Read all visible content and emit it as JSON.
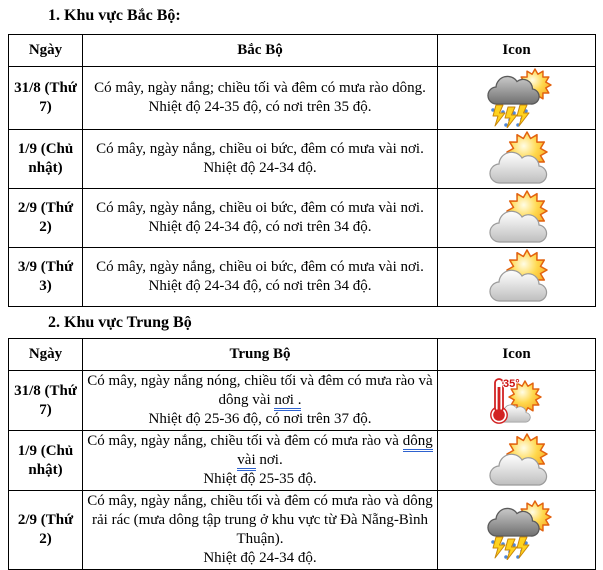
{
  "headings": {
    "section1": "1. Khu vực Bắc Bộ:",
    "section2": "2. Khu vực Trung Bộ"
  },
  "tables": [
    {
      "id": "bac-bo",
      "columns": [
        "Ngày",
        "Bắc Bộ",
        "Icon"
      ],
      "rows": [
        {
          "date": "31/8 (Thứ 7)",
          "desc": "Có mây, ngày nắng; chiều tối và đêm có mưa rào dông.",
          "temp": "Nhiệt độ 24-35 độ, có nơi trên 35 độ.",
          "icon": "storm-sun-icon"
        },
        {
          "date": "1/9 (Chủ nhật)",
          "desc": "Có mây, ngày nắng, chiều oi bức, đêm có mưa vài nơi.",
          "temp": "Nhiệt độ 24-34 độ.",
          "icon": "sun-cloud-icon"
        },
        {
          "date": "2/9 (Thứ 2)",
          "desc": "Có mây, ngày nắng, chiều oi bức, đêm có mưa vài nơi.",
          "temp": "Nhiệt độ 24-34 độ, có nơi trên 34 độ.",
          "icon": "sun-cloud-icon"
        },
        {
          "date": "3/9 (Thứ 3)",
          "desc": "Có mây, ngày nắng, chiều oi bức, đêm có mưa vài nơi.",
          "temp": "Nhiệt độ 24-34 độ, có nơi trên 34 độ.",
          "icon": "sun-cloud-icon"
        }
      ]
    },
    {
      "id": "trung-bo",
      "columns": [
        "Ngày",
        "Trung Bộ",
        "Icon"
      ],
      "rows": [
        {
          "date": "31/8 (Thứ 7)",
          "desc": "Có mây, ngày nắng nóng, chiều tối và đêm có mưa rào và dông vài nơi .",
          "underline": "nơi .",
          "temp": "Nhiệt độ 25-36 độ, có nơi trên 37 độ.",
          "icon": "hot-thermometer-icon",
          "icon_label": "35°"
        },
        {
          "date": "1/9 (Chủ nhật)",
          "desc": "Có mây, ngày nắng, chiều tối và đêm có mưa rào và dông vài nơi.",
          "underline": "dông vài",
          "temp": "Nhiệt độ 25-35 độ.",
          "icon": "sun-cloud-icon"
        },
        {
          "date": "2/9 (Thứ 2)",
          "desc": "Có mây, ngày nắng, chiều tối và đêm có mưa rào và dông rải rác (mưa dông tập trung ở khu vực từ Đà Nẵng-Bình Thuận).",
          "temp": "Nhiệt độ 24-34 độ.",
          "icon": "storm-sun-icon"
        }
      ]
    }
  ],
  "icons": {
    "storm-sun-icon": "dark cloud with sun, lightning and rain",
    "sun-cloud-icon": "sun behind light cloud",
    "hot-thermometer-icon": "thermometer 35° with sun and small cloud"
  },
  "colors": {
    "text": "#000000",
    "table_border": "#000000",
    "grammar_underline_blue": "#2e62cf",
    "sun_yellow": "#ffd84d",
    "sun_stroke_orange": "#e2610e",
    "storm_cloud_gray": "#707070",
    "lightning_yellow": "#ffd21e",
    "rain_blue": "#4d86d8",
    "thermometer_red": "#d22222"
  }
}
